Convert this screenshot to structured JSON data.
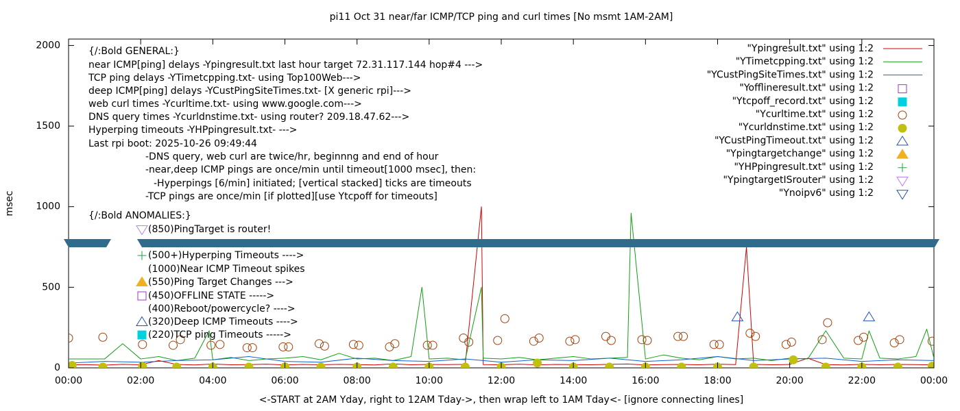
{
  "chart_data": {
    "type": "line",
    "title": "pi11 Oct 31  near/far ICMP/TCP ping and curl times [No msmt 1AM-2AM]",
    "x_label": "<-START at 2AM Yday, right to 12AM Tday->, then wrap left to 1AM Tday<- [ignore connecting lines]",
    "y_label": "msec",
    "xlim": [
      0,
      24
    ],
    "xticks": [
      {
        "value": 0,
        "label": "00:00"
      },
      {
        "value": 2,
        "label": "02:00"
      },
      {
        "value": 4,
        "label": "04:00"
      },
      {
        "value": 6,
        "label": "06:00"
      },
      {
        "value": 8,
        "label": "08:00"
      },
      {
        "value": 10,
        "label": "10:00"
      },
      {
        "value": 12,
        "label": "12:00"
      },
      {
        "value": 14,
        "label": "14:00"
      },
      {
        "value": 16,
        "label": "16:00"
      },
      {
        "value": 18,
        "label": "18:00"
      },
      {
        "value": 20,
        "label": "20:00"
      },
      {
        "value": 22,
        "label": "22:00"
      },
      {
        "value": 24,
        "label": "00:00"
      }
    ],
    "ylim": [
      0,
      2040
    ],
    "yticks": [
      0,
      500,
      1000,
      1500,
      2000
    ],
    "grid": false,
    "legend": "top-right",
    "annotations": [
      {
        "text": "{/:Bold GENERAL:}"
      },
      {
        "text": "near ICMP[ping] delays -Ypingresult.txt last hour target 72.31.117.144 hop#4 --->"
      },
      {
        "text": "TCP ping delays -YTimetcpping.txt- using Top100Web--->"
      },
      {
        "text": "deep ICMP[ping] delays -YCustPingSiteTimes.txt- [X generic rpi]--->"
      },
      {
        "text": "web curl times -Ycurltime.txt- using www.google.com--->"
      },
      {
        "text": "DNS query times -Ycurldnstime.txt- using router? 209.18.47.62--->"
      },
      {
        "text": "Hyperping timeouts -YHPpingresult.txt- --->"
      },
      {
        "text": "Last rpi boot: 2025-10-26 09:49:44"
      },
      {
        "text": "-DNS query, web curl are twice/hr, beginnng and end of hour"
      },
      {
        "text": "-near,deep ICMP pings are once/min until timeout[1000 msec], then:"
      },
      {
        "text": "-Hyperpings [6/min] initiated; [vertical stacked] ticks are timeouts"
      },
      {
        "text": "-TCP pings are once/min [if plotted][use Ytcpoff for timeouts]"
      },
      {
        "text": "{/:Bold ANOMALIES:}"
      },
      {
        "text": "(850)PingTarget is router!",
        "marker": "triangle-down-open",
        "color": "#c080f0"
      },
      {
        "text": "(500+)Hyperping Timeouts ---->",
        "marker": "plus",
        "color": "#20a040"
      },
      {
        "text": "(1000)Near ICMP Timeout spikes"
      },
      {
        "text": "(550)Ping Target Changes --->",
        "marker": "triangle-filled",
        "color": "#f0b020"
      },
      {
        "text": "(450)OFFLINE STATE ----->",
        "marker": "square-open",
        "color": "#a030d0"
      },
      {
        "text": "(400)Reboot/powercycle? ---->"
      },
      {
        "text": "(320)Deep ICMP Timeouts ---->",
        "marker": "triangle-open",
        "color": "#2050c0"
      },
      {
        "text": "(220)TCP ping Timeouts ----->",
        "marker": "square-filled",
        "color": "#00d0e0"
      }
    ],
    "series": [
      {
        "name": "\"Ypingresult.txt\" using 1:2",
        "color": "#d00000",
        "marker": "line",
        "x": [
          0,
          0.5,
          1,
          1.5,
          2,
          2.5,
          3,
          3.5,
          4,
          4.5,
          5,
          5.5,
          6,
          6.5,
          7,
          7.5,
          8,
          8.5,
          9,
          9.5,
          10,
          10.5,
          11,
          11.45,
          11.5,
          12,
          12.5,
          13,
          13.5,
          14,
          14.5,
          15,
          15.5,
          16,
          16.5,
          17,
          17.5,
          18,
          18.5,
          18.8,
          19,
          19.5,
          20,
          20.5,
          21,
          21.5,
          22,
          22.5,
          23,
          23.5,
          24
        ],
        "values": [
          18,
          20,
          17,
          22,
          19,
          45,
          21,
          18,
          24,
          19,
          20,
          23,
          18,
          21,
          19,
          22,
          20,
          18,
          25,
          19,
          21,
          20,
          22,
          1000,
          20,
          19,
          23,
          18,
          21,
          20,
          19,
          22,
          24,
          18,
          20,
          21,
          19,
          23,
          20,
          750,
          22,
          19,
          21,
          60,
          20,
          18,
          22,
          19,
          21,
          20,
          18
        ]
      },
      {
        "name": "\"YTimetcpping.txt\" using 1:2",
        "color": "#10a010",
        "marker": "line",
        "x": [
          0,
          0.5,
          1,
          1.5,
          2,
          2.5,
          3,
          3.5,
          3.9,
          4,
          4.5,
          5,
          5.5,
          6,
          6.5,
          7,
          7.5,
          8,
          8.5,
          9,
          9.5,
          9.8,
          10,
          10.5,
          11,
          11.45,
          11.5,
          12,
          12.5,
          13,
          13.5,
          14,
          14.5,
          15,
          15.5,
          15.6,
          16,
          16.5,
          17,
          17.5,
          18,
          18.5,
          19,
          19.5,
          20,
          20.5,
          21,
          21.5,
          22,
          22.2,
          22.5,
          23,
          23.5,
          23.8,
          24
        ],
        "values": [
          55,
          55,
          55,
          150,
          55,
          70,
          45,
          60,
          230,
          50,
          65,
          45,
          55,
          60,
          70,
          50,
          90,
          55,
          60,
          45,
          70,
          500,
          55,
          60,
          50,
          500,
          60,
          55,
          65,
          50,
          60,
          70,
          55,
          60,
          65,
          960,
          55,
          80,
          60,
          50,
          70,
          55,
          60,
          45,
          60,
          55,
          230,
          60,
          55,
          230,
          60,
          55,
          70,
          240,
          60
        ]
      },
      {
        "name": "\"YCustPingSiteTimes.txt\" using 1:2",
        "color": "#1060d0",
        "marker": "line",
        "x": [
          0,
          1,
          2,
          3,
          4,
          5,
          6,
          7,
          8,
          9,
          10,
          11,
          12,
          13,
          14,
          15,
          16,
          17,
          18,
          19,
          20,
          21,
          22,
          23,
          24
        ],
        "values": [
          30,
          40,
          35,
          45,
          50,
          70,
          40,
          35,
          60,
          45,
          40,
          55,
          35,
          50,
          45,
          60,
          40,
          50,
          70,
          45,
          55,
          60,
          40,
          50,
          45
        ]
      },
      {
        "name": "\"Yofflineresult.txt\" using 1:2",
        "color": "#a030d0",
        "marker": "square-open",
        "x": [],
        "values": []
      },
      {
        "name": "\"Ytcpoff_record.txt\" using 1:2",
        "color": "#00d0e0",
        "marker": "square-filled",
        "x": [],
        "values": []
      },
      {
        "name": "\"Ycurltime.txt\" using 1:2",
        "color": "#a0400a",
        "marker": "circle-open",
        "x": [
          0,
          0.95,
          2.05,
          2.9,
          3.1,
          3.95,
          4.2,
          4.95,
          5.1,
          5.95,
          6.1,
          6.95,
          7.1,
          7.9,
          8.05,
          8.9,
          9.05,
          9.95,
          10.1,
          10.95,
          11.1,
          11.9,
          12.1,
          12.9,
          13.05,
          13.9,
          14.05,
          14.9,
          15.05,
          15.9,
          16.05,
          16.9,
          17.05,
          17.9,
          18.05,
          18.9,
          19.05,
          19.9,
          20.05,
          20.9,
          21.05,
          21.9,
          22.05,
          22.9,
          23.05,
          23.95
        ],
        "values": [
          185,
          190,
          145,
          140,
          175,
          140,
          145,
          125,
          125,
          130,
          130,
          150,
          135,
          145,
          140,
          130,
          150,
          140,
          140,
          185,
          160,
          170,
          305,
          165,
          185,
          165,
          175,
          195,
          170,
          175,
          170,
          195,
          195,
          145,
          145,
          215,
          195,
          145,
          160,
          175,
          280,
          170,
          190,
          155,
          175,
          165
        ]
      },
      {
        "name": "\"Ycurldnstime.txt\" using 1:2",
        "color": "#c0c010",
        "marker": "circle-filled",
        "x": [
          0.1,
          0.95,
          2.05,
          3,
          4,
          5,
          6,
          7,
          8,
          9,
          10,
          11,
          12,
          13,
          14,
          15,
          16,
          17,
          18,
          19,
          20.1,
          21,
          22,
          23,
          23.95
        ],
        "values": [
          15,
          5,
          10,
          5,
          5,
          5,
          6,
          5,
          5,
          5,
          5,
          5,
          5,
          30,
          5,
          5,
          5,
          5,
          5,
          5,
          50,
          5,
          5,
          5,
          10
        ]
      },
      {
        "name": "\"YCustPingTimeout.txt\" using 1:2",
        "color": "#2050c0",
        "marker": "triangle-open",
        "x": [
          18.55,
          22.2
        ],
        "values": [
          315,
          315
        ]
      },
      {
        "name": "\"Ypingtargetchange\" using 1:2",
        "color": "#f0b020",
        "marker": "triangle-filled",
        "x": [],
        "values": []
      },
      {
        "name": "\"YHPpingresult.txt\" using 1:2",
        "color": "#20a040",
        "marker": "plus",
        "x": [],
        "values": []
      },
      {
        "name": "\"YpingtargetISrouter\" using 1:2",
        "color": "#c080f0",
        "marker": "triangle-down-open",
        "x": [],
        "values": []
      },
      {
        "name": "\"Ynoipv6\" using 1:2",
        "color": "#2050a0",
        "marker": "triangle-down-open",
        "x": [],
        "values": []
      }
    ]
  }
}
